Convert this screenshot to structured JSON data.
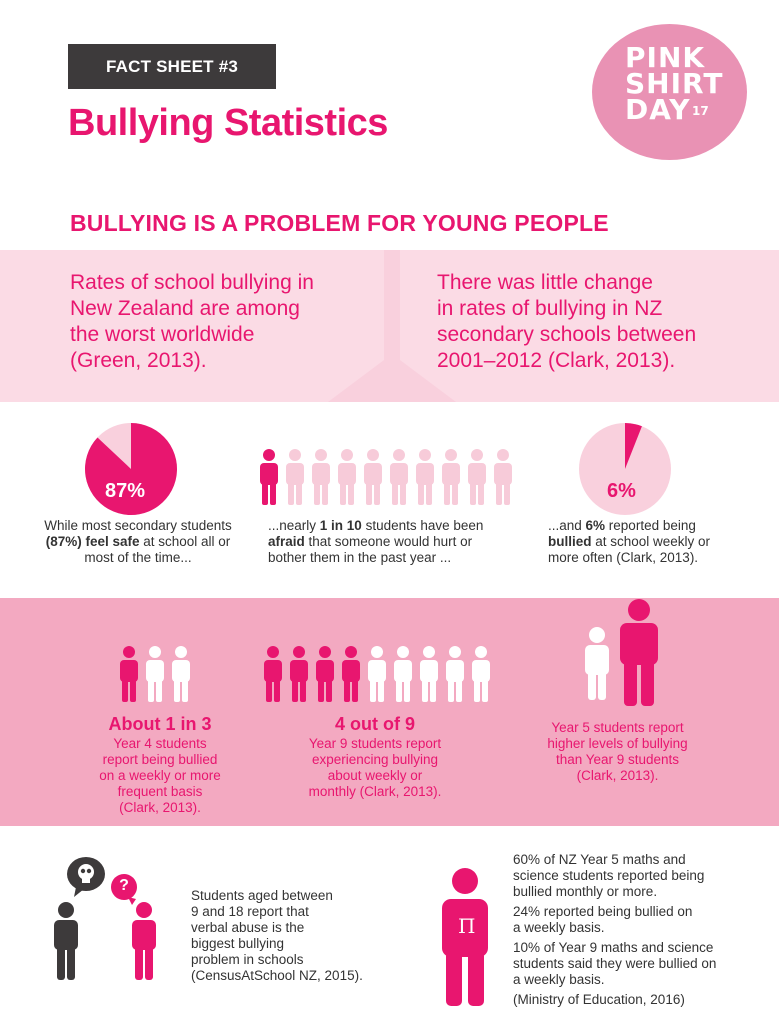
{
  "header": {
    "tag": "FACT SHEET #3",
    "title": "Bullying Statistics"
  },
  "logo": {
    "line1": "PINK",
    "line2": "SHIRT",
    "line3": "DAY",
    "year": "17"
  },
  "section_title": "BULLYING IS A PROBLEM FOR YOUNG PEOPLE",
  "quotes": {
    "left": [
      "Rates of school bullying in",
      "New Zealand are among",
      "the worst worldwide",
      "(Green, 2013)."
    ],
    "right": [
      "There was little change",
      "in rates of bullying in NZ",
      "secondary schools between",
      "2001–2012 (Clark, 2013)."
    ]
  },
  "stats": {
    "safe": {
      "label": "87%",
      "value": 0.87,
      "text_a": "While most secondary students",
      "text_b_bold": "(87%) feel safe",
      "text_b_rest": " at school all or",
      "text_c": "most of the time..."
    },
    "afraid": {
      "highlighted": 1,
      "total": 10,
      "text_a_pre": "...nearly ",
      "text_a_bold": "1 in 10",
      "text_a_post": " students have been",
      "text_b_bold": "afraid",
      "text_b_rest": " that someone would hurt or",
      "text_c": "bother them in the past year ..."
    },
    "bullied": {
      "label": "6%",
      "value": 0.06,
      "text_a_pre": "...and ",
      "text_a_bold": "6%",
      "text_a_post": " reported being",
      "text_b_bold": "bullied",
      "text_b_rest": " at school weekly or",
      "text_c": "more often (Clark, 2013)."
    }
  },
  "band": {
    "year4": {
      "highlighted": 1,
      "total": 3,
      "headline": "About 1 in 3",
      "lines": [
        "Year 4 students",
        "report being bullied",
        "on a weekly or more",
        "frequent basis",
        "(Clark, 2013)."
      ]
    },
    "year9": {
      "highlighted": 4,
      "total": 9,
      "headline": "4 out of 9",
      "lines": [
        "Year 9 students report",
        "experiencing bullying",
        "about weekly or",
        "monthly (Clark, 2013)."
      ]
    },
    "year5": {
      "lines": [
        "Year 5 students report",
        "higher levels of bullying",
        "than Year 9 students",
        "(Clark, 2013)."
      ]
    }
  },
  "bottom": {
    "left_lines": [
      "Students aged between",
      "9 and 18 report that",
      "verbal abuse is the",
      "biggest bullying",
      "problem in schools",
      "(CensusAtSchool NZ, 2015)."
    ],
    "question_mark": "?",
    "shirt_letter": "Π",
    "right_p1": [
      "60% of NZ Year 5 maths and",
      "science students reported being",
      "bullied monthly or more."
    ],
    "right_p2": [
      "24% reported being bullied on",
      "a weekly basis."
    ],
    "right_p3": [
      "10% of Year 9 maths and science",
      "students said they were bullied on",
      "a weekly basis."
    ],
    "right_p4": "(Ministry of Education, 2016)"
  },
  "colors": {
    "pink": "#e8166f",
    "light_pink": "#f9d0dd",
    "mid_pink": "#f3a9c1",
    "figure_light": "#f7cbd9",
    "dark": "#3d3a3b"
  }
}
